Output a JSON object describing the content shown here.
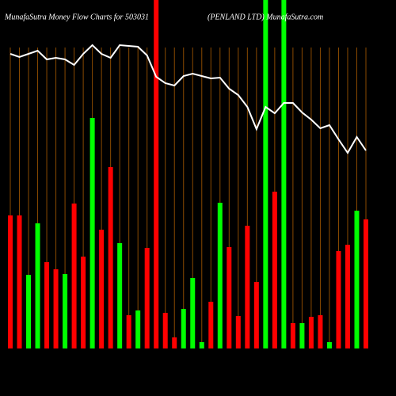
{
  "chart_data": {
    "type": "bar-line",
    "title": "MunafaSutra  Money Flow  Charts for 503031",
    "subtitle": "(PENLAND LTD) MunafaSutra.com",
    "categories": [
      null,
      null,
      null,
      null,
      null,
      null,
      null,
      null,
      null,
      null,
      null,
      null,
      null,
      null,
      null,
      null,
      null,
      null,
      null,
      null,
      null,
      null,
      null,
      null,
      null,
      null,
      null,
      null,
      null,
      null,
      null,
      null,
      null,
      null,
      null,
      null,
      null,
      null,
      null,
      null
    ],
    "bars": {
      "values": [
        168,
        168,
        93,
        158,
        109,
        100,
        94,
        183,
        116,
        291,
        150,
        229,
        133,
        42,
        48,
        127,
        480,
        45,
        14,
        50,
        89,
        8,
        59,
        184,
        128,
        41,
        155,
        84,
        480,
        198,
        480,
        32,
        32,
        40,
        42,
        8,
        123,
        131,
        174,
        163
      ],
      "colors": [
        "#ff0000",
        "#ff0000",
        "#00ff00",
        "#00ff00",
        "#ff0000",
        "#ff0000",
        "#00ff00",
        "#ff0000",
        "#ff0000",
        "#00ff00",
        "#ff0000",
        "#ff0000",
        "#00ff00",
        "#ff0000",
        "#00ff00",
        "#ff0000",
        "#ff0000",
        "#ff0000",
        "#ff0000",
        "#00ff00",
        "#00ff00",
        "#00ff00",
        "#ff0000",
        "#00ff00",
        "#ff0000",
        "#ff0000",
        "#ff0000",
        "#ff0000",
        "#00ff00",
        "#ff0000",
        "#00ff00",
        "#ff0000",
        "#00ff00",
        "#ff0000",
        "#ff0000",
        "#00ff00",
        "#ff0000",
        "#ff0000",
        "#00ff00",
        "#ff0000"
      ]
    },
    "ylim": [
      0,
      440
    ],
    "line": {
      "color": "#ffffff",
      "values": [
        372,
        368,
        372,
        376,
        365,
        367,
        365,
        358,
        372,
        383,
        372,
        367,
        383,
        382,
        381,
        370,
        343,
        335,
        332,
        344,
        347,
        344,
        341,
        342,
        328,
        320,
        305,
        277,
        305,
        297,
        310,
        310,
        298,
        289,
        278,
        282,
        264,
        247,
        267,
        250
      ]
    },
    "y2lim": [
      0,
      440
    ]
  }
}
